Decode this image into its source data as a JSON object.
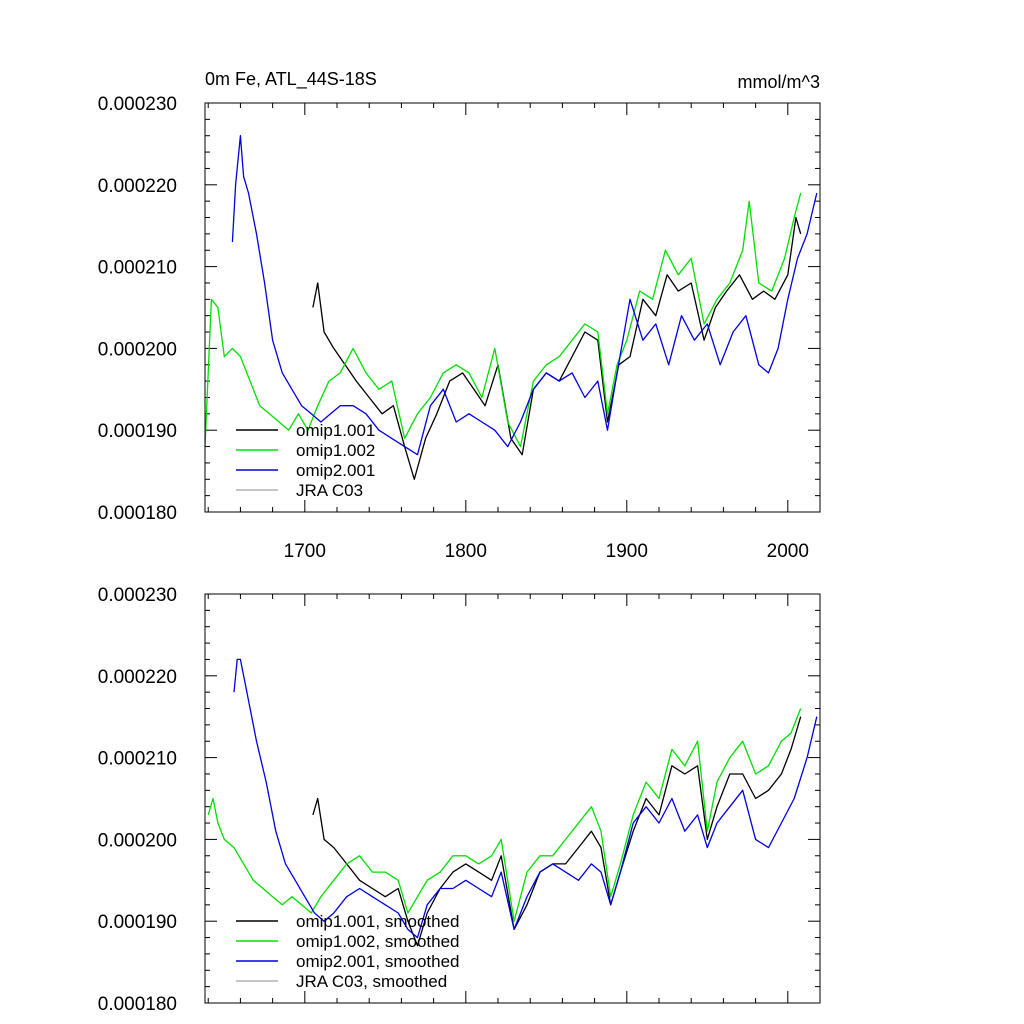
{
  "chart_data": [
    {
      "type": "line",
      "panel": "top",
      "title_left": "0m Fe, ATL_44S-18S",
      "title_right": "mmol/m^3",
      "xlabel": "",
      "ylabel": "",
      "xlim": [
        1638,
        2020
      ],
      "ylim": [
        0.00018,
        0.00023
      ],
      "x_ticks": [
        1700,
        1800,
        1900,
        2000
      ],
      "x_tick_labels": [
        "1700",
        "1800",
        "1900",
        "2000"
      ],
      "y_ticks": [
        0.00018,
        0.00019,
        0.0002,
        0.00021,
        0.00022,
        0.00023
      ],
      "y_tick_labels": [
        "0.000180",
        "0.000190",
        "0.000200",
        "0.000210",
        "0.000220",
        "0.000230"
      ],
      "legend_position": "bottom-left",
      "series": [
        {
          "name": "omip1.001",
          "color": "#000000",
          "x": [
            1705,
            1708,
            1712,
            1718,
            1725,
            1732,
            1740,
            1748,
            1755,
            1762,
            1768,
            1775,
            1782,
            1790,
            1798,
            1805,
            1812,
            1820,
            1828,
            1835,
            1842,
            1850,
            1858,
            1866,
            1874,
            1882,
            1888,
            1895,
            1902,
            1910,
            1918,
            1925,
            1932,
            1940,
            1948,
            1955,
            1962,
            1970,
            1978,
            1985,
            1992,
            2000,
            2005,
            2008
          ],
          "values": [
            0.000205,
            0.000208,
            0.000202,
            0.0002,
            0.000198,
            0.000196,
            0.000194,
            0.000192,
            0.000193,
            0.000188,
            0.000184,
            0.000189,
            0.000192,
            0.000196,
            0.000197,
            0.000195,
            0.000193,
            0.000198,
            0.000189,
            0.000187,
            0.000195,
            0.000197,
            0.000196,
            0.000199,
            0.000202,
            0.000201,
            0.000191,
            0.000198,
            0.000199,
            0.000206,
            0.000204,
            0.000209,
            0.000207,
            0.000208,
            0.000201,
            0.000205,
            0.000207,
            0.000209,
            0.000206,
            0.000207,
            0.000206,
            0.000209,
            0.000216,
            0.000214
          ]
        },
        {
          "name": "omip1.002",
          "color": "#00e000",
          "x": [
            1638,
            1642,
            1646,
            1650,
            1655,
            1660,
            1666,
            1672,
            1678,
            1684,
            1690,
            1696,
            1702,
            1708,
            1715,
            1722,
            1730,
            1738,
            1746,
            1754,
            1762,
            1770,
            1778,
            1786,
            1794,
            1802,
            1810,
            1818,
            1826,
            1834,
            1842,
            1850,
            1858,
            1866,
            1874,
            1882,
            1888,
            1894,
            1900,
            1908,
            1916,
            1924,
            1932,
            1940,
            1948,
            1956,
            1964,
            1972,
            1976,
            1982,
            1990,
            1998,
            2004,
            2008
          ],
          "values": [
            0.000188,
            0.000206,
            0.000205,
            0.000199,
            0.0002,
            0.000199,
            0.000196,
            0.000193,
            0.000192,
            0.000191,
            0.00019,
            0.000192,
            0.00019,
            0.000193,
            0.000196,
            0.000197,
            0.0002,
            0.000197,
            0.000195,
            0.000196,
            0.000189,
            0.000192,
            0.000194,
            0.000197,
            0.000198,
            0.000197,
            0.000194,
            0.0002,
            0.000191,
            0.000188,
            0.000196,
            0.000198,
            0.000199,
            0.000201,
            0.000203,
            0.000202,
            0.000192,
            0.000198,
            0.000201,
            0.000207,
            0.000206,
            0.000212,
            0.000209,
            0.000211,
            0.000203,
            0.000206,
            0.000208,
            0.000212,
            0.000218,
            0.000208,
            0.000207,
            0.000211,
            0.000216,
            0.000219
          ]
        },
        {
          "name": "omip2.001",
          "color": "#0000e0",
          "x": [
            1655,
            1657,
            1660,
            1662,
            1665,
            1670,
            1675,
            1680,
            1686,
            1692,
            1698,
            1704,
            1710,
            1716,
            1722,
            1730,
            1738,
            1746,
            1754,
            1762,
            1770,
            1778,
            1786,
            1794,
            1802,
            1810,
            1818,
            1826,
            1834,
            1842,
            1850,
            1858,
            1866,
            1874,
            1882,
            1888,
            1894,
            1902,
            1910,
            1918,
            1926,
            1934,
            1942,
            1950,
            1958,
            1966,
            1974,
            1982,
            1988,
            1994,
            2000,
            2006,
            2012,
            2018
          ],
          "values": [
            0.000213,
            0.00022,
            0.000226,
            0.000221,
            0.000219,
            0.000214,
            0.000208,
            0.000201,
            0.000197,
            0.000195,
            0.000193,
            0.000192,
            0.000191,
            0.000192,
            0.000193,
            0.000193,
            0.000192,
            0.00019,
            0.000189,
            0.000188,
            0.000187,
            0.000193,
            0.000195,
            0.000191,
            0.000192,
            0.000191,
            0.00019,
            0.000188,
            0.000191,
            0.000195,
            0.000197,
            0.000196,
            0.000197,
            0.000194,
            0.000196,
            0.00019,
            0.000197,
            0.000206,
            0.000201,
            0.000203,
            0.000198,
            0.000204,
            0.000201,
            0.000203,
            0.000198,
            0.000202,
            0.000204,
            0.000198,
            0.000197,
            0.0002,
            0.000206,
            0.000211,
            0.000214,
            0.000219
          ]
        },
        {
          "name": "JRA C03",
          "color": "#b4b4b4",
          "x": [],
          "values": []
        }
      ]
    },
    {
      "type": "line",
      "panel": "bottom",
      "title_left": "",
      "title_right": "",
      "xlabel": "",
      "ylabel": "",
      "xlim": [
        1638,
        2020
      ],
      "ylim": [
        0.00018,
        0.00023
      ],
      "x_ticks": [
        1700,
        1800,
        1900,
        2000
      ],
      "x_tick_labels": [],
      "y_ticks": [
        0.00018,
        0.00019,
        0.0002,
        0.00021,
        0.00022,
        0.00023
      ],
      "y_tick_labels": [
        "0.000180",
        "0.000190",
        "0.000200",
        "0.000210",
        "0.000220",
        "0.000230"
      ],
      "legend_position": "bottom-left",
      "series": [
        {
          "name": "omip1.001, smoothed",
          "color": "#000000",
          "x": [
            1705,
            1708,
            1712,
            1718,
            1726,
            1734,
            1742,
            1750,
            1758,
            1764,
            1770,
            1776,
            1784,
            1792,
            1800,
            1808,
            1816,
            1822,
            1830,
            1838,
            1846,
            1854,
            1862,
            1870,
            1878,
            1884,
            1890,
            1896,
            1904,
            1912,
            1920,
            1928,
            1936,
            1944,
            1950,
            1956,
            1964,
            1972,
            1980,
            1988,
            1996,
            2002,
            2008
          ],
          "values": [
            0.000203,
            0.000205,
            0.0002,
            0.000199,
            0.000197,
            0.000195,
            0.000194,
            0.000193,
            0.000194,
            0.00019,
            0.000187,
            0.000191,
            0.000194,
            0.000196,
            0.000197,
            0.000196,
            0.000195,
            0.000198,
            0.000189,
            0.000192,
            0.000196,
            0.000197,
            0.000197,
            0.000199,
            0.000201,
            0.000199,
            0.000192,
            0.000196,
            0.000201,
            0.000205,
            0.000203,
            0.000209,
            0.000208,
            0.000209,
            0.0002,
            0.000204,
            0.000208,
            0.000208,
            0.000205,
            0.000206,
            0.000208,
            0.000211,
            0.000215
          ]
        },
        {
          "name": "omip1.002, smoothed",
          "color": "#00e000",
          "x": [
            1640,
            1643,
            1646,
            1650,
            1656,
            1662,
            1668,
            1674,
            1680,
            1686,
            1692,
            1698,
            1704,
            1710,
            1718,
            1726,
            1734,
            1742,
            1750,
            1758,
            1764,
            1770,
            1776,
            1784,
            1792,
            1800,
            1808,
            1816,
            1822,
            1830,
            1838,
            1846,
            1854,
            1862,
            1870,
            1878,
            1884,
            1890,
            1896,
            1904,
            1912,
            1920,
            1928,
            1936,
            1944,
            1950,
            1956,
            1964,
            1972,
            1980,
            1988,
            1996,
            2002,
            2008
          ],
          "values": [
            0.000203,
            0.000205,
            0.000202,
            0.0002,
            0.000199,
            0.000197,
            0.000195,
            0.000194,
            0.000193,
            0.000192,
            0.000193,
            0.000192,
            0.000191,
            0.000193,
            0.000195,
            0.000197,
            0.000198,
            0.000196,
            0.000196,
            0.000195,
            0.000191,
            0.000193,
            0.000195,
            0.000196,
            0.000198,
            0.000198,
            0.000197,
            0.000198,
            0.0002,
            0.00019,
            0.000196,
            0.000198,
            0.000198,
            0.0002,
            0.000202,
            0.000204,
            0.000201,
            0.000193,
            0.000197,
            0.000203,
            0.000207,
            0.000205,
            0.000211,
            0.000209,
            0.000212,
            0.000201,
            0.000207,
            0.00021,
            0.000212,
            0.000208,
            0.000209,
            0.000212,
            0.000213,
            0.000216
          ]
        },
        {
          "name": "omip2.001, smoothed",
          "color": "#0000e0",
          "x": [
            1656,
            1658,
            1660,
            1664,
            1670,
            1676,
            1682,
            1688,
            1694,
            1700,
            1706,
            1712,
            1718,
            1726,
            1734,
            1742,
            1750,
            1758,
            1764,
            1770,
            1776,
            1784,
            1792,
            1800,
            1808,
            1816,
            1822,
            1830,
            1838,
            1846,
            1854,
            1862,
            1870,
            1878,
            1884,
            1890,
            1896,
            1904,
            1912,
            1920,
            1928,
            1936,
            1944,
            1950,
            1956,
            1964,
            1972,
            1980,
            1988,
            1996,
            2004,
            2012,
            2018
          ],
          "values": [
            0.000218,
            0.000222,
            0.000222,
            0.000218,
            0.000212,
            0.000207,
            0.000201,
            0.000197,
            0.000195,
            0.000193,
            0.000191,
            0.00019,
            0.000191,
            0.000193,
            0.000194,
            0.000193,
            0.000192,
            0.000191,
            0.000189,
            0.000188,
            0.000192,
            0.000194,
            0.000194,
            0.000195,
            0.000194,
            0.000193,
            0.000196,
            0.000189,
            0.000193,
            0.000196,
            0.000197,
            0.000196,
            0.000195,
            0.000197,
            0.000196,
            0.000192,
            0.000196,
            0.000202,
            0.000204,
            0.000202,
            0.000205,
            0.000201,
            0.000203,
            0.000199,
            0.000202,
            0.000204,
            0.000206,
            0.0002,
            0.000199,
            0.000202,
            0.000205,
            0.00021,
            0.000215
          ]
        },
        {
          "name": "JRA C03, smoothed",
          "color": "#b4b4b4",
          "x": [],
          "values": []
        }
      ]
    }
  ]
}
